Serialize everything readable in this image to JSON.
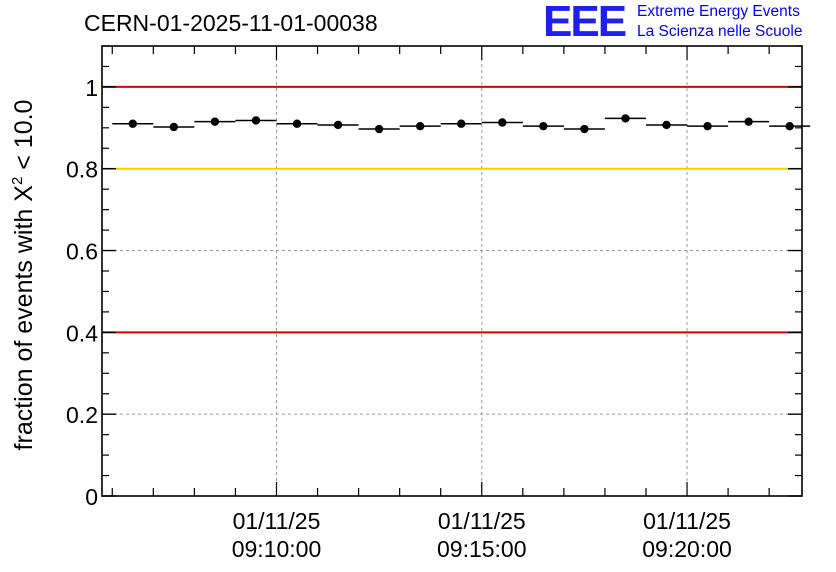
{
  "title": "CERN-01-2025-11-01-00038",
  "logo": {
    "mark": "EEE",
    "line1": "Extreme Energy Events",
    "line2": "La Scienza nelle Scuole"
  },
  "colors": {
    "red_line": "#e00000",
    "yellow_line": "#ffcc00",
    "marker": "#000000",
    "grid": "#999999",
    "logo": "#0000ff"
  },
  "chart_data": {
    "type": "scatter",
    "title": "CERN-01-2025-11-01-00038",
    "xlabel": "",
    "ylabel": "fraction of events with X² < 10.0",
    "ylabel_parts": {
      "before": "fraction of events with X",
      "sup": "2",
      "after": " < 10.0"
    },
    "ylim": [
      0,
      1.1
    ],
    "yticks": [
      0,
      0.2,
      0.4,
      0.6,
      0.8,
      1
    ],
    "ytick_labels": [
      "0",
      "0.2",
      "0.4",
      "0.6",
      "0.8",
      "1"
    ],
    "xlim_min": [
      -0.25,
      16.8
    ],
    "xticks_min": [
      4,
      9,
      14
    ],
    "xtick_labels": [
      {
        "date": "01/11/25",
        "time": "09:10:00"
      },
      {
        "date": "01/11/25",
        "time": "09:15:00"
      },
      {
        "date": "01/11/25",
        "time": "09:20:00"
      }
    ],
    "grid": true,
    "reference_lines": [
      {
        "y": 1.0,
        "color": "red"
      },
      {
        "y": 0.8,
        "color": "yellow"
      },
      {
        "y": 0.4,
        "color": "red"
      }
    ],
    "x_min": [
      0.5,
      1.5,
      2.5,
      3.5,
      4.5,
      5.5,
      6.5,
      7.5,
      8.5,
      9.5,
      10.5,
      11.5,
      12.5,
      13.5,
      14.5,
      15.5,
      16.5
    ],
    "bin_halfwidth_min": 0.5,
    "values": [
      0.91,
      0.902,
      0.915,
      0.918,
      0.91,
      0.907,
      0.897,
      0.904,
      0.91,
      0.913,
      0.904,
      0.897,
      0.923,
      0.907,
      0.904,
      0.915,
      0.904
    ]
  }
}
